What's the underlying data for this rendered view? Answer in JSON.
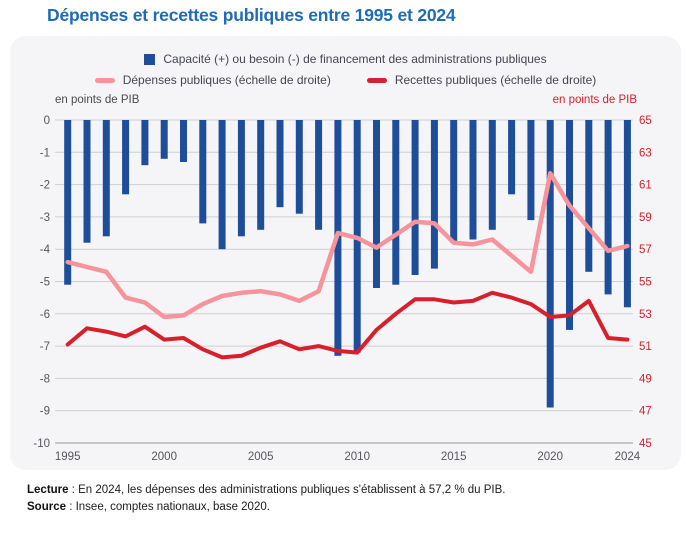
{
  "title": "Dépenses et recettes publiques entre 1995 et 2024",
  "legend": {
    "bars": "Capacité (+) ou besoin (-) de financement des administrations publiques",
    "depenses": "Dépenses publiques (échelle de droite)",
    "recettes": "Recettes publiques (échelle de droite)"
  },
  "axis": {
    "left_unit": "en points de PIB",
    "right_unit": "en points de PIB"
  },
  "footer": {
    "lecture_label": "Lecture",
    "lecture_text": " : En 2024, les dépenses des administrations publiques s'établissent à 57,2 % du PIB.",
    "source_label": "Source",
    "source_text": " : Insee, comptes nationaux, base 2020."
  },
  "colors": {
    "title_blue": "#1e6bb8",
    "bar_blue": "#1e4d9a",
    "depenses_pink": "#f6939b",
    "recettes_red": "#d7202b",
    "grid": "#cfcfd3",
    "grid_bottom": "#97979d",
    "card_bg": "#f5f5f7"
  },
  "chart_data": {
    "type": "bar",
    "title": "Dépenses et recettes publiques entre 1995 et 2024",
    "years": [
      1995,
      1996,
      1997,
      1998,
      1999,
      2000,
      2001,
      2002,
      2003,
      2004,
      2005,
      2006,
      2007,
      2008,
      2009,
      2010,
      2011,
      2012,
      2013,
      2014,
      2015,
      2016,
      2017,
      2018,
      2019,
      2020,
      2021,
      2022,
      2023,
      2024
    ],
    "x_ticks": [
      1995,
      2000,
      2005,
      2010,
      2015,
      2020,
      2024
    ],
    "left_axis": {
      "label": "en points de PIB",
      "range": [
        -10,
        0
      ],
      "ticks": [
        0,
        -1,
        -2,
        -3,
        -4,
        -5,
        -6,
        -7,
        -8,
        -9,
        -10
      ]
    },
    "right_axis": {
      "label": "en points de PIB",
      "range": [
        45,
        65
      ],
      "max": 65,
      "ticks": [
        65,
        63,
        61,
        59,
        57,
        55,
        53,
        51,
        49,
        47,
        45
      ]
    },
    "series": [
      {
        "name": "Capacité (+) ou besoin (-) de financement des administrations publiques",
        "type": "bar",
        "axis": "left",
        "color": "#1e4d9a",
        "values": [
          -5.1,
          -3.8,
          -3.6,
          -2.3,
          -1.4,
          -1.2,
          -1.3,
          -3.2,
          -4.0,
          -3.6,
          -3.4,
          -2.7,
          -2.9,
          -3.4,
          -7.3,
          -7.2,
          -5.2,
          -5.1,
          -4.8,
          -4.6,
          -3.8,
          -3.7,
          -3.4,
          -2.3,
          -3.1,
          -8.9,
          -6.5,
          -4.7,
          -5.4,
          -5.8
        ]
      },
      {
        "name": "Dépenses publiques (échelle de droite)",
        "type": "line",
        "axis": "right",
        "color": "#f6939b",
        "width": 4.5,
        "values": [
          56.2,
          55.9,
          55.6,
          54.0,
          53.7,
          52.8,
          52.9,
          53.6,
          54.1,
          54.3,
          54.4,
          54.2,
          53.8,
          54.4,
          58.0,
          57.7,
          57.1,
          57.9,
          58.7,
          58.6,
          57.4,
          57.3,
          57.6,
          56.6,
          55.6,
          61.7,
          59.7,
          58.3,
          56.9,
          57.2
        ]
      },
      {
        "name": "Recettes publiques (échelle de droite)",
        "type": "line",
        "axis": "right",
        "color": "#d7202b",
        "width": 4,
        "values": [
          51.1,
          52.1,
          51.9,
          51.6,
          52.2,
          51.4,
          51.5,
          50.8,
          50.3,
          50.4,
          50.9,
          51.3,
          50.8,
          51.0,
          50.7,
          50.6,
          52.0,
          53.0,
          53.9,
          53.9,
          53.7,
          53.8,
          54.3,
          54.0,
          53.6,
          52.8,
          52.9,
          53.8,
          51.5,
          51.4
        ]
      }
    ]
  }
}
